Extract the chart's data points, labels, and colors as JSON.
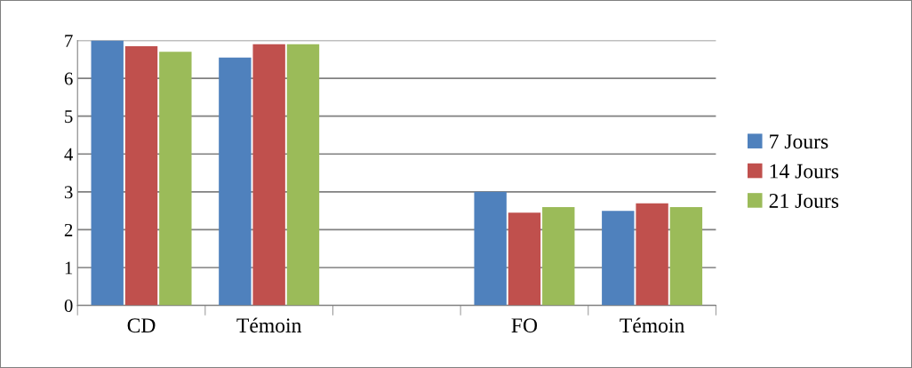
{
  "chart_data": {
    "type": "bar",
    "categories": [
      "CD",
      "Témoin",
      null,
      "FO",
      "Témoin"
    ],
    "series": [
      {
        "name": "7 Jours",
        "color": "#4f81bd",
        "values": [
          7.0,
          6.55,
          null,
          3.0,
          2.5
        ]
      },
      {
        "name": "14 Jours",
        "color": "#c0504d",
        "values": [
          6.85,
          6.9,
          null,
          2.45,
          2.7
        ]
      },
      {
        "name": "21 Jours",
        "color": "#9bbb59",
        "values": [
          6.7,
          6.9,
          null,
          2.6,
          2.6
        ]
      }
    ],
    "ylim": [
      0,
      7
    ],
    "yticks": [
      0,
      1,
      2,
      3,
      4,
      5,
      6,
      7
    ],
    "grid": "y",
    "legend": "right"
  }
}
